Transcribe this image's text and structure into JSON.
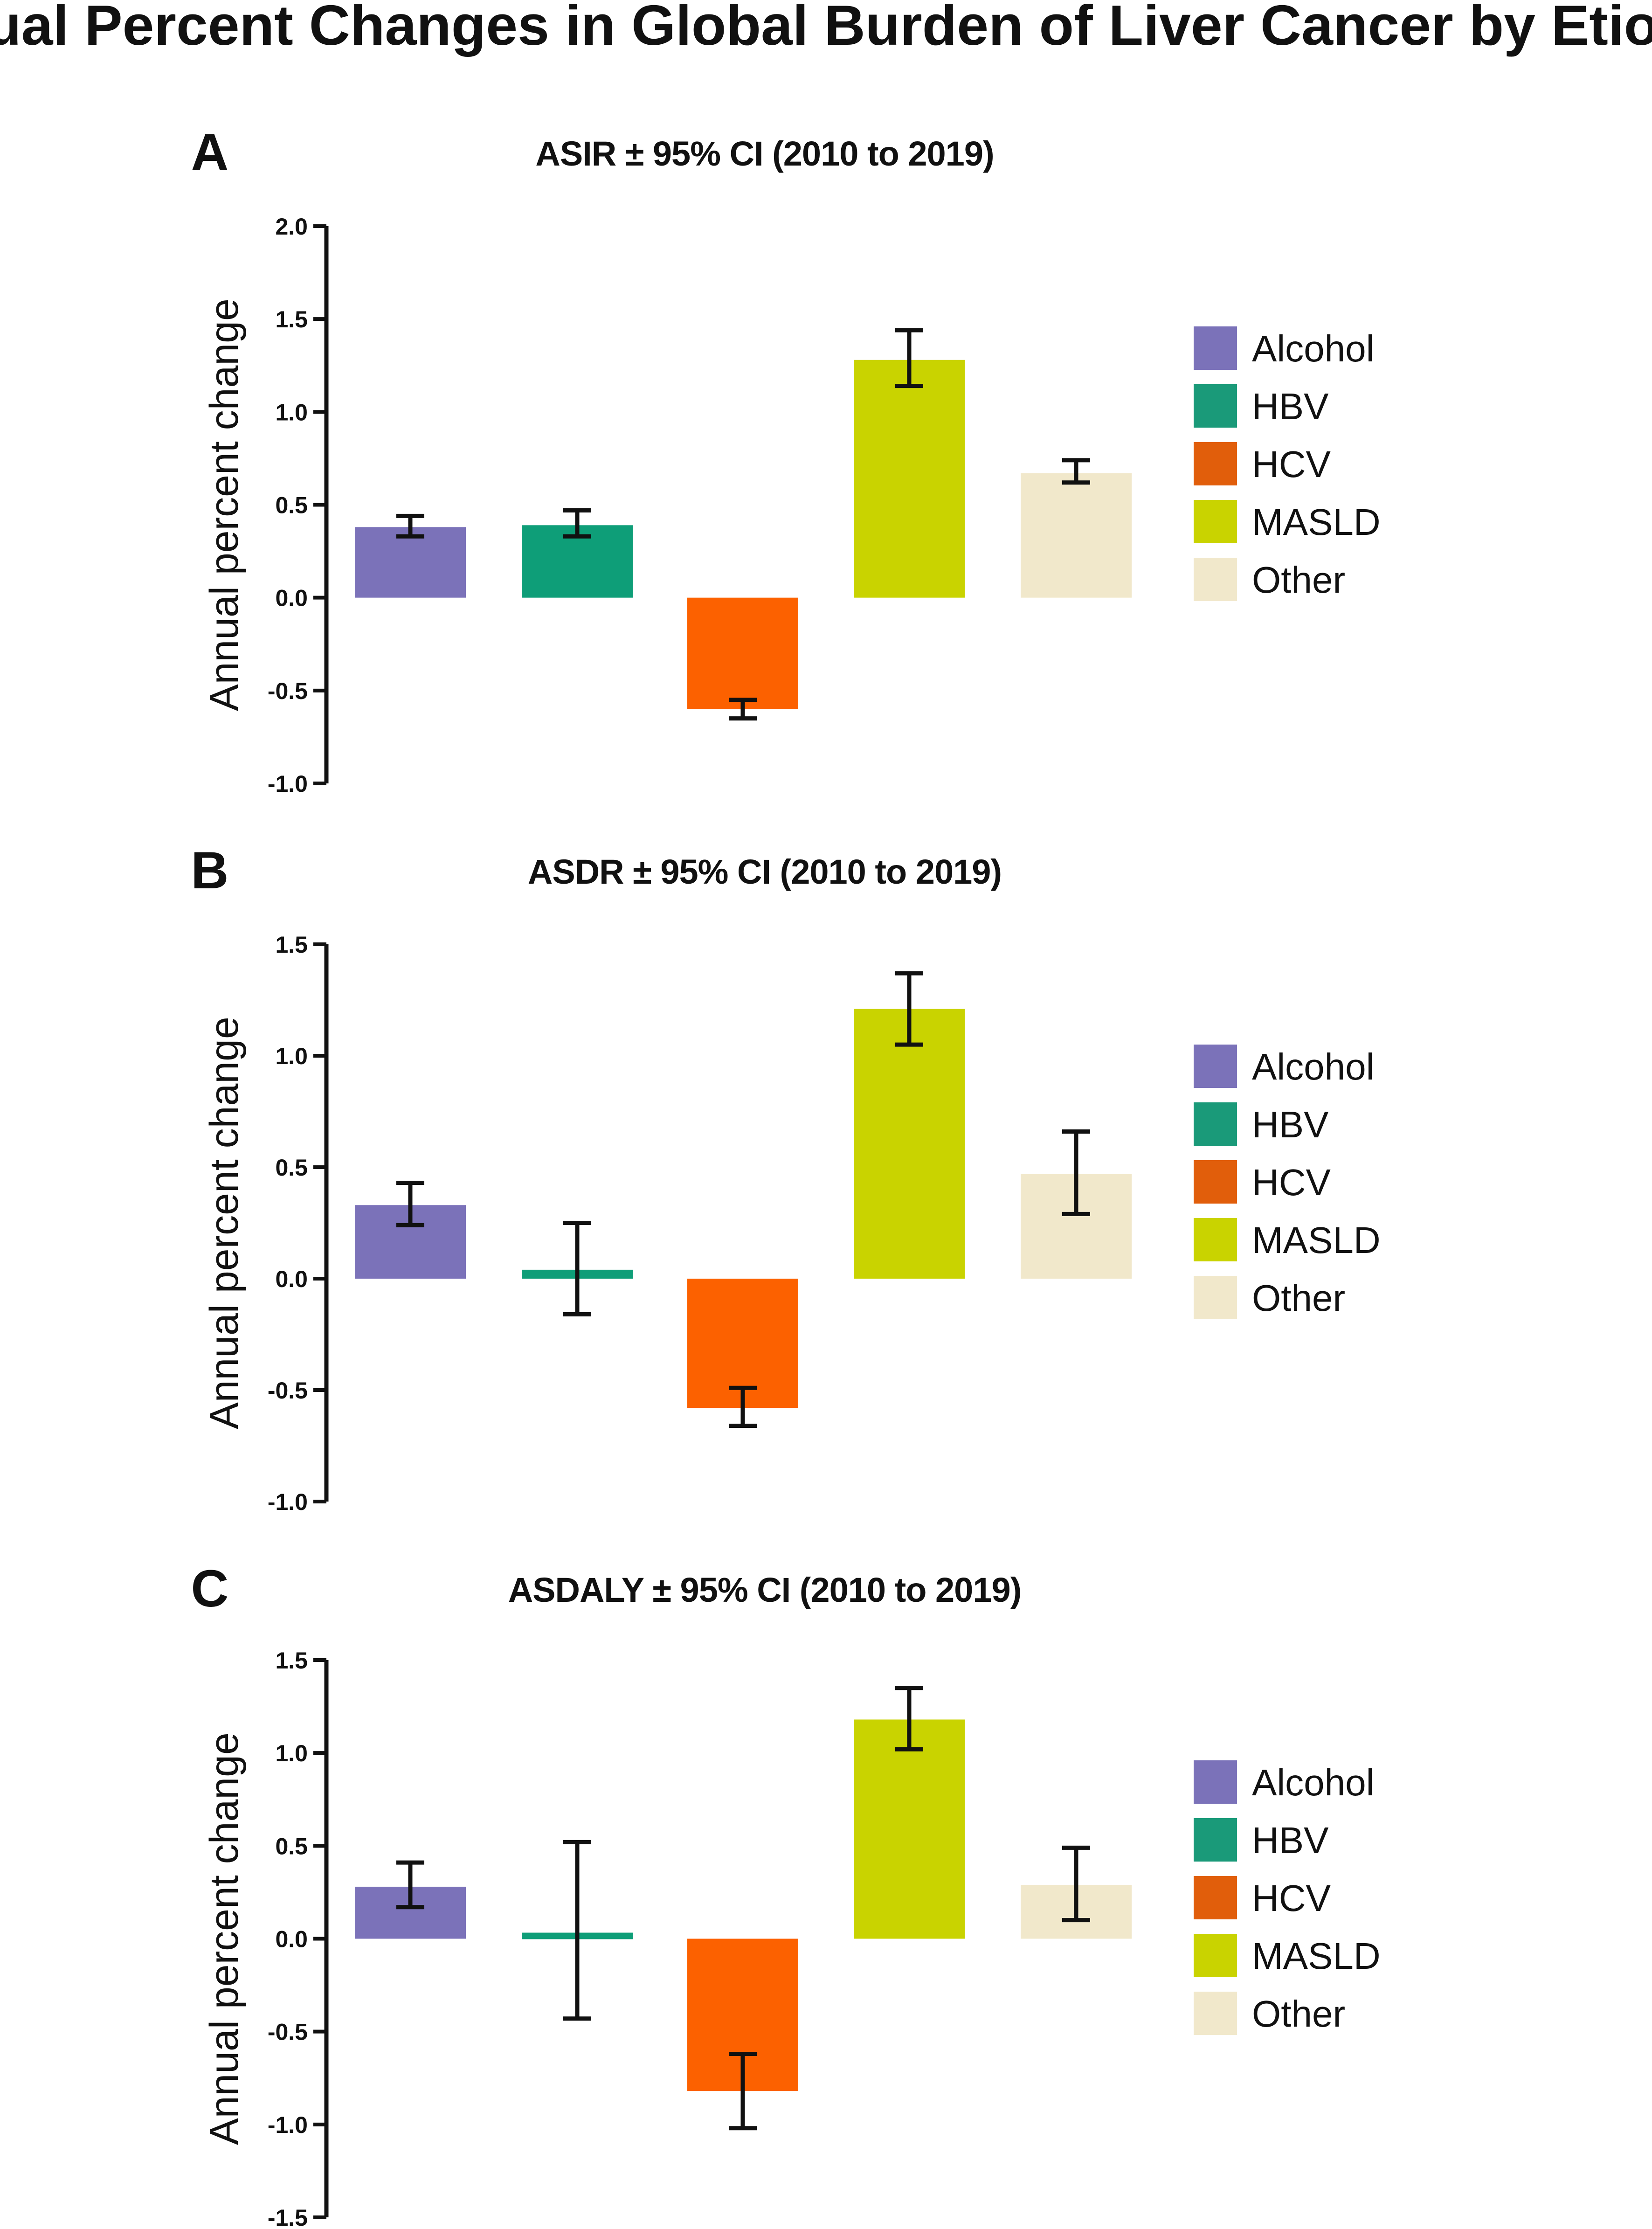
{
  "figure_title": "Annual Percent Changes in Global Burden of Liver Cancer by Etiology",
  "colors": {
    "Alcohol": "#7b72b9",
    "HBV": "#0e9e78",
    "HCV": "#fc6100",
    "MASLD": "#c9d300",
    "Other": "#f1e8cb",
    "legend_HBV": "#1a9a79",
    "legend_HCV": "#e15e0b"
  },
  "legend": [
    "Alcohol",
    "HBV",
    "HCV",
    "MASLD",
    "Other"
  ],
  "chart_data": [
    {
      "panel": "A",
      "type": "bar",
      "title": "ASIR ± 95% CI (2010 to 2019)",
      "ylabel": "Annual percent change",
      "xlabel": "",
      "categories": [
        "Alcohol",
        "HBV",
        "HCV",
        "MASLD",
        "Other"
      ],
      "values": [
        0.38,
        0.39,
        -0.6,
        1.28,
        0.67
      ],
      "ci_lower": [
        0.33,
        0.33,
        -0.65,
        1.14,
        0.62
      ],
      "ci_upper": [
        0.44,
        0.47,
        -0.55,
        1.44,
        0.74
      ],
      "ylim": [
        -1.0,
        2.0
      ],
      "yticks": [
        -1.0,
        -0.5,
        0.0,
        0.5,
        1.0,
        1.5,
        2.0
      ],
      "ytick_labels": [
        "-1.0",
        "-0.5",
        "0.0",
        "0.5",
        "1.0",
        "1.5",
        "2.0"
      ],
      "legend_position": "right"
    },
    {
      "panel": "B",
      "type": "bar",
      "title": "ASDR ± 95% CI (2010 to 2019)",
      "ylabel": "Annual percent change",
      "xlabel": "",
      "categories": [
        "Alcohol",
        "HBV",
        "HCV",
        "MASLD",
        "Other"
      ],
      "values": [
        0.33,
        0.04,
        -0.58,
        1.21,
        0.47
      ],
      "ci_lower": [
        0.24,
        -0.16,
        -0.66,
        1.05,
        0.29
      ],
      "ci_upper": [
        0.43,
        0.25,
        -0.49,
        1.37,
        0.66
      ],
      "ylim": [
        -1.0,
        1.5
      ],
      "yticks": [
        -1.0,
        -0.5,
        0.0,
        0.5,
        1.0,
        1.5
      ],
      "ytick_labels": [
        "-1.0",
        "-0.5",
        "0.0",
        "0.5",
        "1.0",
        "1.5"
      ],
      "legend_position": "right"
    },
    {
      "panel": "C",
      "type": "bar",
      "title": "ASDALY ± 95% CI (2010 to 2019)",
      "ylabel": "Annual percent change",
      "xlabel": "",
      "categories": [
        "Alcohol",
        "HBV",
        "HCV",
        "MASLD",
        "Other"
      ],
      "values": [
        0.28,
        0.03,
        -0.82,
        1.18,
        0.29
      ],
      "ci_lower": [
        0.17,
        -0.43,
        -1.02,
        1.02,
        0.1
      ],
      "ci_upper": [
        0.41,
        0.52,
        -0.62,
        1.35,
        0.49
      ],
      "ylim": [
        -1.5,
        1.5
      ],
      "yticks": [
        -1.5,
        -1.0,
        -0.5,
        0.0,
        0.5,
        1.0,
        1.5
      ],
      "ytick_labels": [
        "-1.5",
        "-1.0",
        "-0.5",
        "0.0",
        "0.5",
        "1.0",
        "1.5"
      ],
      "legend_position": "right"
    }
  ]
}
